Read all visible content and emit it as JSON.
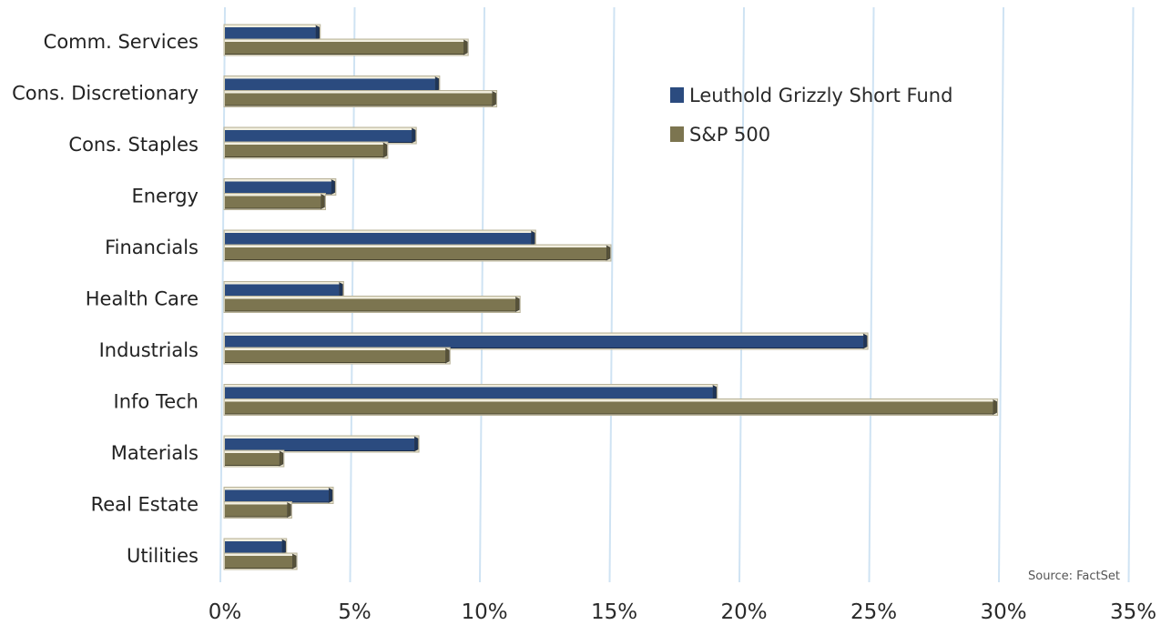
{
  "chart_data": {
    "type": "bar",
    "orientation": "horizontal",
    "title": "",
    "xlabel": "",
    "ylabel": "",
    "categories": [
      "Comm. Services",
      "Cons. Discretionary",
      "Cons. Staples",
      "Energy",
      "Financials",
      "Health Care",
      "Industrials",
      "Info Tech",
      "Materials",
      "Real Estate",
      "Utilities"
    ],
    "series": [
      {
        "name": "Leuthold Grizzly Short Fund",
        "color": "#2b4b7f",
        "values": [
          3.5,
          8.1,
          7.2,
          4.1,
          11.8,
          4.4,
          24.6,
          18.8,
          7.3,
          4.0,
          2.2
        ]
      },
      {
        "name": "S&P 500",
        "color": "#7c7550",
        "values": [
          9.2,
          10.3,
          6.1,
          3.7,
          14.7,
          11.2,
          8.5,
          29.6,
          2.1,
          2.4,
          2.6
        ]
      }
    ],
    "xlim": [
      0,
      35
    ],
    "xticks": [
      0,
      5,
      10,
      15,
      20,
      25,
      30,
      35
    ],
    "xtick_labels": [
      "0%",
      "5%",
      "10%",
      "15%",
      "20%",
      "25%",
      "30%",
      "35%"
    ],
    "grid": "vertical",
    "legend_position": "upper-right",
    "source_note": "Source: FactSet"
  }
}
